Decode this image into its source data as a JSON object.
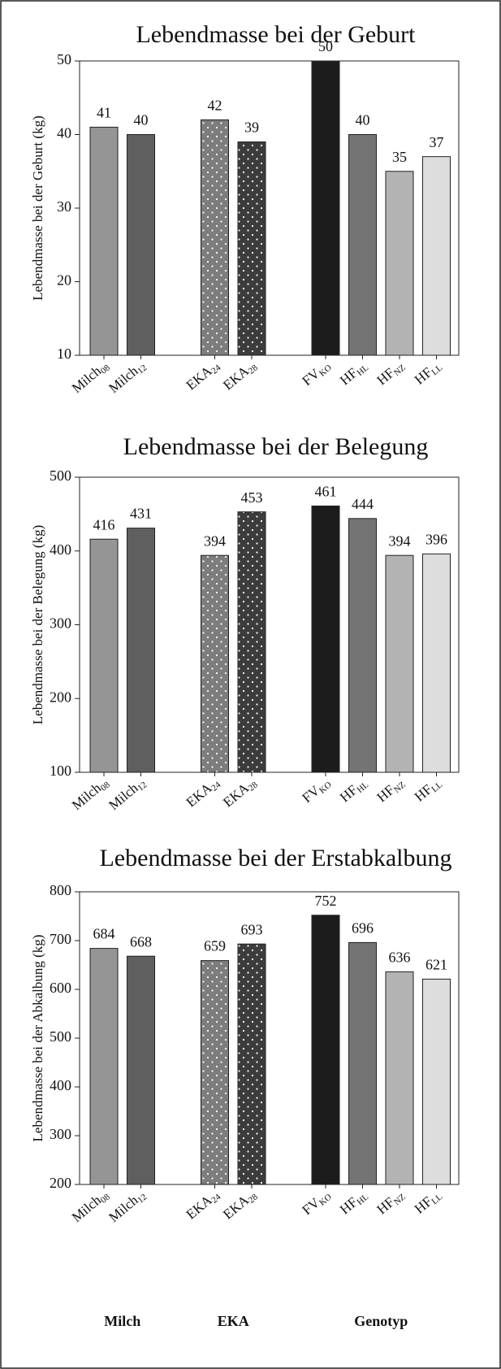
{
  "chart_data": [
    {
      "type": "bar",
      "title": "Lebendmasse bei der Geburt",
      "ylabel": "Lebendmasse bei der Geburt (kg)",
      "categories": [
        {
          "label": "Milch",
          "sub": "08"
        },
        {
          "label": "Milch",
          "sub": "12"
        },
        null,
        {
          "label": "EKA",
          "sub": "24"
        },
        {
          "label": "EKA",
          "sub": "28"
        },
        null,
        {
          "label": "FV",
          "sub": "KO"
        },
        {
          "label": "HF",
          "sub": "HL"
        },
        {
          "label": "HF",
          "sub": "NZ"
        },
        {
          "label": "HF",
          "sub": "LL"
        }
      ],
      "values": [
        41,
        40,
        null,
        42,
        39,
        null,
        50,
        40,
        35,
        37
      ],
      "colors": [
        "#959595",
        "#5f5f60",
        null,
        "#7d7d7d",
        "#3c3c3c",
        null,
        "#1c1c1c",
        "#747474",
        "#b3b3b3",
        "#dddddd"
      ],
      "dotted": [
        false,
        false,
        null,
        true,
        true,
        null,
        false,
        false,
        false,
        false
      ],
      "ylim": [
        10,
        50
      ],
      "yticks": [
        10,
        20,
        30,
        40,
        50
      ]
    },
    {
      "type": "bar",
      "title": "Lebendmasse bei der Belegung",
      "ylabel": "Lebendmasse bei der Belegung (kg)",
      "categories": [
        {
          "label": "Milch",
          "sub": "08"
        },
        {
          "label": "Milch",
          "sub": "12"
        },
        null,
        {
          "label": "EKA",
          "sub": "24"
        },
        {
          "label": "EKA",
          "sub": "28"
        },
        null,
        {
          "label": "FV",
          "sub": "KO"
        },
        {
          "label": "HF",
          "sub": "HL"
        },
        {
          "label": "HF",
          "sub": "NZ"
        },
        {
          "label": "HF",
          "sub": "LL"
        }
      ],
      "values": [
        416,
        431,
        null,
        394,
        453,
        null,
        461,
        444,
        394,
        396
      ],
      "colors": [
        "#959595",
        "#5f5f60",
        null,
        "#7d7d7d",
        "#3c3c3c",
        null,
        "#1c1c1c",
        "#747474",
        "#b3b3b3",
        "#dddddd"
      ],
      "dotted": [
        false,
        false,
        null,
        true,
        true,
        null,
        false,
        false,
        false,
        false
      ],
      "ylim": [
        100,
        500
      ],
      "yticks": [
        100,
        200,
        300,
        400,
        500
      ]
    },
    {
      "type": "bar",
      "title": "Lebendmasse bei der Erstabkalbung",
      "ylabel": "Lebendmasse bei der Abkalbung (kg)",
      "categories": [
        {
          "label": "Milch",
          "sub": "08"
        },
        {
          "label": "Milch",
          "sub": "12"
        },
        null,
        {
          "label": "EKA",
          "sub": "24"
        },
        {
          "label": "EKA",
          "sub": "28"
        },
        null,
        {
          "label": "FV",
          "sub": "KO"
        },
        {
          "label": "HF",
          "sub": "HL"
        },
        {
          "label": "HF",
          "sub": "NZ"
        },
        {
          "label": "HF",
          "sub": "LL"
        }
      ],
      "values": [
        684,
        668,
        null,
        659,
        693,
        null,
        752,
        696,
        636,
        621
      ],
      "colors": [
        "#959595",
        "#5f5f60",
        null,
        "#7d7d7d",
        "#3c3c3c",
        null,
        "#1c1c1c",
        "#747474",
        "#b3b3b3",
        "#dddddd"
      ],
      "dotted": [
        false,
        false,
        null,
        true,
        true,
        null,
        false,
        false,
        false,
        false
      ],
      "ylim": [
        200,
        800
      ],
      "yticks": [
        200,
        300,
        400,
        500,
        600,
        700,
        800
      ],
      "group_labels": [
        "Milch",
        "EKA",
        "Genotyp"
      ]
    }
  ]
}
